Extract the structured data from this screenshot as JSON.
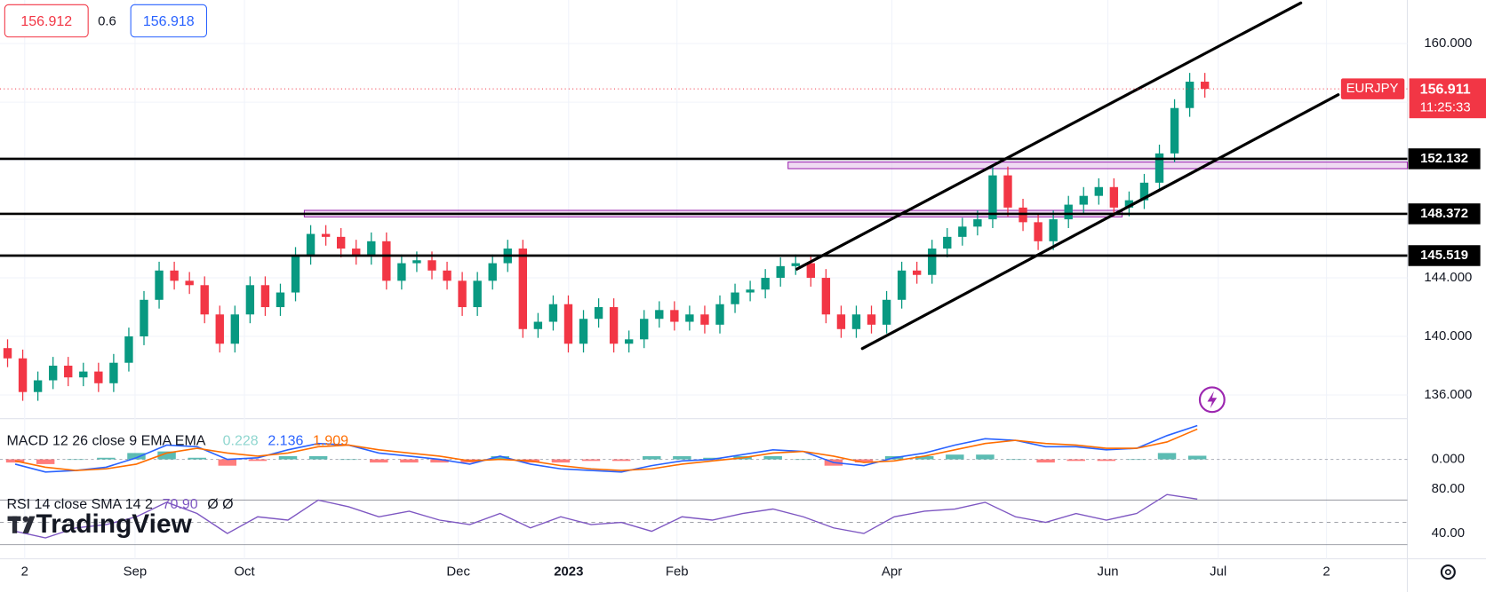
{
  "header": {
    "bid": "156.912",
    "spread": "0.6",
    "ask": "156.918"
  },
  "watermark": "TradingView",
  "chart_data": [
    {
      "type": "candlestick",
      "symbol": "EURJPY",
      "last_price_label": "156.911",
      "countdown": "11:25:33",
      "up_color": "#089981",
      "down_color": "#f23645",
      "open": [
        139.2,
        138.5,
        136.2,
        137.0,
        138.0,
        137.2,
        137.6,
        136.8,
        138.2,
        140.0,
        142.5,
        144.5,
        143.8,
        143.5,
        141.5,
        139.5,
        141.5,
        143.5,
        142.0,
        143.0,
        145.5,
        147.0,
        146.8,
        146.0,
        145.5,
        146.5,
        143.8,
        145.0,
        145.2,
        144.5,
        143.8,
        142.0,
        143.8,
        145.0,
        146.0,
        140.5,
        141.0,
        142.2,
        139.5,
        141.2,
        142.0,
        139.5,
        139.8,
        141.2,
        141.8,
        141.0,
        141.5,
        140.8,
        142.2,
        143.0,
        143.2,
        144.0,
        144.8,
        145.0,
        144.0,
        141.5,
        140.5,
        141.5,
        140.8,
        142.5,
        144.5,
        144.2,
        146.0,
        146.8,
        147.5,
        148.0,
        151.0,
        148.8,
        147.8,
        146.5,
        148.0,
        149.0,
        149.6,
        150.2,
        148.8,
        149.3,
        150.5,
        152.5,
        155.6,
        157.4
      ],
      "high": [
        139.8,
        139.1,
        137.6,
        138.6,
        138.6,
        138.2,
        138.2,
        138.8,
        140.6,
        143.1,
        145.1,
        145.1,
        144.4,
        144.1,
        142.1,
        142.1,
        144.1,
        144.1,
        143.6,
        146.1,
        147.6,
        147.6,
        147.4,
        146.6,
        147.1,
        147.1,
        145.6,
        145.8,
        145.8,
        145.1,
        144.4,
        144.4,
        145.6,
        146.6,
        146.6,
        141.6,
        142.8,
        142.8,
        141.8,
        142.6,
        142.6,
        140.4,
        141.8,
        142.4,
        142.4,
        142.1,
        142.1,
        142.8,
        143.6,
        143.8,
        144.6,
        145.4,
        145.6,
        145.6,
        144.6,
        142.1,
        142.1,
        142.1,
        143.1,
        145.1,
        145.1,
        146.6,
        147.4,
        148.1,
        148.6,
        151.6,
        151.6,
        149.4,
        148.4,
        148.6,
        149.6,
        150.2,
        150.8,
        150.8,
        149.9,
        151.1,
        153.1,
        156.2,
        158.0,
        158.0
      ],
      "low": [
        137.9,
        135.6,
        135.6,
        136.4,
        136.6,
        136.6,
        136.2,
        136.2,
        137.6,
        139.4,
        141.9,
        143.2,
        142.9,
        140.9,
        138.9,
        138.9,
        140.9,
        141.4,
        141.4,
        142.4,
        144.9,
        146.2,
        145.4,
        144.9,
        144.9,
        143.2,
        143.2,
        144.4,
        143.9,
        143.2,
        141.4,
        141.4,
        143.2,
        144.4,
        139.9,
        139.9,
        140.4,
        138.9,
        138.9,
        140.6,
        138.9,
        138.9,
        139.2,
        140.6,
        140.4,
        140.4,
        140.2,
        140.2,
        141.6,
        142.4,
        142.6,
        143.4,
        144.2,
        143.4,
        140.9,
        139.9,
        139.9,
        140.2,
        140.2,
        141.9,
        143.6,
        143.6,
        145.4,
        146.2,
        146.9,
        147.4,
        148.2,
        147.2,
        145.9,
        145.9,
        147.4,
        148.4,
        149.0,
        148.2,
        148.2,
        148.7,
        149.9,
        151.9,
        155.0,
        156.31
      ],
      "close": [
        138.5,
        136.2,
        137.0,
        138.0,
        137.2,
        137.6,
        136.8,
        138.2,
        140.0,
        142.5,
        144.5,
        143.8,
        143.5,
        141.5,
        139.5,
        141.5,
        143.5,
        142.0,
        143.0,
        145.5,
        147.0,
        146.8,
        146.0,
        145.5,
        146.5,
        143.8,
        145.0,
        145.2,
        144.5,
        143.8,
        142.0,
        143.8,
        145.0,
        146.0,
        140.5,
        141.0,
        142.2,
        139.5,
        141.2,
        142.0,
        139.5,
        139.8,
        141.2,
        141.8,
        141.0,
        141.5,
        140.8,
        142.2,
        143.0,
        143.2,
        144.0,
        144.8,
        145.0,
        144.0,
        141.5,
        140.5,
        141.5,
        140.8,
        142.5,
        144.5,
        144.2,
        146.0,
        146.8,
        147.5,
        148.0,
        151.0,
        148.8,
        147.8,
        146.5,
        148.0,
        149.0,
        149.6,
        150.2,
        148.8,
        149.3,
        150.5,
        152.5,
        155.6,
        157.4,
        156.911
      ],
      "xlim": [
        0,
        92.86
      ],
      "xticks": [
        {
          "value": 1.63,
          "label": "2"
        },
        {
          "value": 8.91,
          "label": "Sep"
        },
        {
          "value": 16.13,
          "label": "Oct"
        },
        {
          "value": 30.24,
          "label": "Dec"
        },
        {
          "value": 37.52,
          "label": "2023"
        },
        {
          "value": 44.67,
          "label": "Feb"
        },
        {
          "value": 58.85,
          "label": "Apr"
        },
        {
          "value": 73.1,
          "label": "Jun"
        },
        {
          "value": 80.38,
          "label": "Jul"
        },
        {
          "value": 87.53,
          "label": "2"
        }
      ],
      "ylim": [
        134.51,
        162.98
      ],
      "yticks": [
        {
          "value": 136,
          "label": "136.000"
        },
        {
          "value": 140,
          "label": "140.000"
        },
        {
          "value": 144,
          "label": "144.000"
        },
        {
          "value": 148,
          "label": "148.000"
        },
        {
          "value": 152,
          "label": "152.000"
        },
        {
          "value": 156,
          "label": "156.000"
        },
        {
          "value": 160,
          "label": "160.000"
        }
      ],
      "grid": true,
      "levels": [
        {
          "value": 152.132,
          "label": "152.132"
        },
        {
          "value": 148.372,
          "label": "148.372"
        },
        {
          "value": 145.519,
          "label": "145.519"
        }
      ],
      "zones": [
        {
          "x": [
            52.0,
            92.86
          ],
          "y": [
            151.46,
            151.91
          ]
        },
        {
          "x": [
            20.08,
            74.04
          ],
          "y": [
            148.16,
            148.61
          ]
        }
      ],
      "trendlines": [
        {
          "x": [
            52.58,
            85.83
          ],
          "y": [
            144.6,
            162.78
          ]
        },
        {
          "x": [
            56.9,
            88.3
          ],
          "y": [
            139.17,
            156.51
          ]
        }
      ]
    },
    {
      "type": "macd",
      "title": "MACD 12 26 close 9 EMA EMA",
      "x": [
        1,
        3,
        5,
        7,
        9,
        11,
        13,
        15,
        17,
        19,
        21,
        23,
        25,
        27,
        29,
        31,
        33,
        35,
        37,
        39,
        41,
        43,
        45,
        47,
        49,
        51,
        53,
        55,
        57,
        59,
        61,
        63,
        65,
        67,
        69,
        71,
        73,
        75,
        77,
        79
      ],
      "histogram": {
        "up_color": "#26a69a",
        "down_color": "#ff5252",
        "last_label": "0.228",
        "label_color": "#8fd6cf",
        "values": [
          -0.2,
          -0.3,
          0.0,
          0.1,
          0.4,
          0.5,
          0.1,
          -0.4,
          -0.1,
          0.2,
          0.2,
          0.0,
          -0.2,
          -0.2,
          -0.2,
          -0.2,
          0.2,
          -0.2,
          -0.2,
          -0.1,
          -0.1,
          0.2,
          0.2,
          0.1,
          0.2,
          0.2,
          0.0,
          -0.4,
          -0.2,
          0.2,
          0.2,
          0.3,
          0.3,
          0.0,
          -0.2,
          -0.1,
          -0.1,
          0.0,
          0.4,
          0.228
        ]
      },
      "series": [
        {
          "color": "#2962ff",
          "last_label": "2.136",
          "values": [
            -0.3,
            -0.8,
            -0.7,
            -0.5,
            0.1,
            0.9,
            0.8,
            0.0,
            0.1,
            0.6,
            1.0,
            0.9,
            0.4,
            0.2,
            0.0,
            -0.3,
            0.2,
            -0.3,
            -0.6,
            -0.7,
            -0.8,
            -0.4,
            -0.1,
            0.0,
            0.3,
            0.6,
            0.5,
            -0.2,
            -0.4,
            0.1,
            0.4,
            0.9,
            1.3,
            1.2,
            0.8,
            0.8,
            0.6,
            0.7,
            1.5,
            2.136
          ]
        },
        {
          "color": "#ff6d00",
          "last_label": "1.909",
          "values": [
            -0.1,
            -0.5,
            -0.7,
            -0.6,
            -0.3,
            0.4,
            0.7,
            0.4,
            0.2,
            0.4,
            0.8,
            0.9,
            0.6,
            0.4,
            0.2,
            -0.1,
            0.0,
            -0.1,
            -0.4,
            -0.6,
            -0.7,
            -0.6,
            -0.3,
            -0.1,
            0.1,
            0.4,
            0.5,
            0.2,
            -0.2,
            -0.1,
            0.2,
            0.6,
            1.0,
            1.2,
            1.0,
            0.9,
            0.7,
            0.7,
            1.1,
            1.909
          ]
        }
      ],
      "ylim": [
        -0.9,
        2.57
      ],
      "yticks": [
        {
          "value": 0,
          "label": "0.000"
        }
      ]
    },
    {
      "type": "rsi",
      "title": "RSI 14 close SMA 14 2",
      "extra": "Ø Ø",
      "x": [
        1,
        3,
        5,
        7,
        9,
        11,
        13,
        15,
        17,
        19,
        21,
        23,
        25,
        27,
        29,
        31,
        33,
        35,
        37,
        39,
        41,
        43,
        45,
        47,
        49,
        51,
        53,
        55,
        57,
        59,
        61,
        63,
        65,
        67,
        69,
        71,
        73,
        75,
        77,
        79
      ],
      "series": [
        {
          "color": "#7e57c2",
          "last_label": "70.90",
          "values": [
            42,
            36,
            45,
            48,
            55,
            68,
            58,
            40,
            55,
            52,
            70,
            64,
            55,
            60,
            52,
            48,
            58,
            45,
            55,
            48,
            50,
            42,
            55,
            52,
            58,
            62,
            55,
            45,
            40,
            55,
            60,
            62,
            68,
            55,
            50,
            58,
            52,
            58,
            75,
            70.9
          ]
        }
      ],
      "levels": [
        70,
        50,
        30
      ],
      "ylim": [
        17.2,
        93.8
      ],
      "yticks": [
        {
          "value": 80,
          "label": "80.00"
        },
        {
          "value": 40,
          "label": "40.00"
        }
      ]
    }
  ]
}
